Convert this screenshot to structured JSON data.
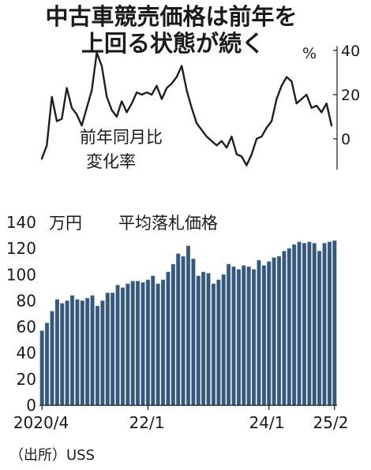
{
  "title_line1": "中古車競売価格は前年を",
  "title_line2": "上回る状態が続く",
  "source": "（出所）USS",
  "chart_data": [
    {
      "type": "line",
      "title": "前年同月比変化率",
      "label_lines": [
        "前年同月比",
        "変化率"
      ],
      "unit": "%",
      "ylim": [
        -14,
        42
      ],
      "yticks": [
        0,
        20,
        40
      ],
      "grid": false,
      "x": [
        "2020/4",
        "2020/5",
        "2020/6",
        "2020/7",
        "2020/8",
        "2020/9",
        "2020/10",
        "2020/11",
        "2020/12",
        "2021/1",
        "2021/2",
        "2021/3",
        "2021/4",
        "2021/5",
        "2021/6",
        "2021/7",
        "2021/8",
        "2021/9",
        "2021/10",
        "2021/11",
        "2021/12",
        "2022/1",
        "2022/2",
        "2022/3",
        "2022/4",
        "2022/5",
        "2022/6",
        "2022/7",
        "2022/8",
        "2022/9",
        "2022/10",
        "2022/11",
        "2022/12",
        "2023/1",
        "2023/2",
        "2023/3",
        "2023/4",
        "2023/5",
        "2023/6",
        "2023/7",
        "2023/8",
        "2023/9",
        "2023/10",
        "2023/11",
        "2023/12",
        "2024/1",
        "2024/2",
        "2024/3",
        "2024/4",
        "2024/5",
        "2024/6",
        "2024/7",
        "2024/8",
        "2024/9",
        "2024/10",
        "2024/11",
        "2024/12",
        "2025/1",
        "2025/2"
      ],
      "values": [
        -9,
        -3,
        19,
        8,
        9,
        23,
        14,
        11,
        6,
        14,
        22,
        39,
        33,
        19,
        13,
        10,
        17,
        12,
        16,
        21,
        20,
        21,
        20,
        24,
        18,
        23,
        25,
        28,
        33,
        22,
        14,
        7,
        4,
        1,
        -1,
        -3,
        -1,
        -4,
        1,
        -7,
        -8,
        -12,
        -7,
        0,
        1,
        5,
        8,
        18,
        24,
        28,
        26,
        16,
        18,
        20,
        14,
        15,
        12,
        16,
        6
      ]
    },
    {
      "type": "bar",
      "title": "平均落札価格",
      "unit": "万円",
      "ylim": [
        0,
        150
      ],
      "yticks": [
        0,
        20,
        40,
        60,
        80,
        100,
        120,
        140
      ],
      "grid": false,
      "xtick_labels": [
        "2020/4",
        "22/1",
        "24/1",
        "25/2"
      ],
      "categories": [
        "2020/4",
        "2020/5",
        "2020/6",
        "2020/7",
        "2020/8",
        "2020/9",
        "2020/10",
        "2020/11",
        "2020/12",
        "2021/1",
        "2021/2",
        "2021/3",
        "2021/4",
        "2021/5",
        "2021/6",
        "2021/7",
        "2021/8",
        "2021/9",
        "2021/10",
        "2021/11",
        "2021/12",
        "2022/1",
        "2022/2",
        "2022/3",
        "2022/4",
        "2022/5",
        "2022/6",
        "2022/7",
        "2022/8",
        "2022/9",
        "2022/10",
        "2022/11",
        "2022/12",
        "2023/1",
        "2023/2",
        "2023/3",
        "2023/4",
        "2023/5",
        "2023/6",
        "2023/7",
        "2023/8",
        "2023/9",
        "2023/10",
        "2023/11",
        "2023/12",
        "2024/1",
        "2024/2",
        "2024/3",
        "2024/4",
        "2024/5",
        "2024/6",
        "2024/7",
        "2024/8",
        "2024/9",
        "2024/10",
        "2024/11",
        "2024/12",
        "2025/1",
        "2025/2"
      ],
      "values": [
        57,
        63,
        72,
        81,
        78,
        80,
        84,
        81,
        80,
        82,
        84,
        76,
        80,
        86,
        86,
        92,
        90,
        93,
        95,
        95,
        94,
        96,
        99,
        93,
        96,
        102,
        108,
        116,
        114,
        122,
        112,
        99,
        102,
        101,
        93,
        96,
        100,
        108,
        106,
        104,
        107,
        106,
        104,
        111,
        107,
        110,
        113,
        114,
        118,
        120,
        123,
        125,
        124,
        125,
        124,
        118,
        124,
        125,
        126
      ]
    }
  ],
  "colors": {
    "line": "#1f1f1f",
    "bar_fill": "#36577a",
    "bar_edge": "#5b7fa6"
  }
}
